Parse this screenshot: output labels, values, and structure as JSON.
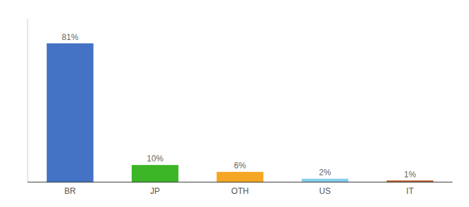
{
  "chart_data": {
    "type": "bar",
    "categories": [
      "BR",
      "JP",
      "OTH",
      "US",
      "IT"
    ],
    "values": [
      81,
      10,
      6,
      2,
      1
    ],
    "value_labels": [
      "81%",
      "10%",
      "6%",
      "2%",
      "1%"
    ],
    "colors": [
      "#4472c4",
      "#3cb527",
      "#f5a623",
      "#87ceeb",
      "#b85c2a"
    ],
    "ylim": [
      0,
      95
    ],
    "data_labels": true,
    "tick_labels": "x",
    "grid": false
  }
}
